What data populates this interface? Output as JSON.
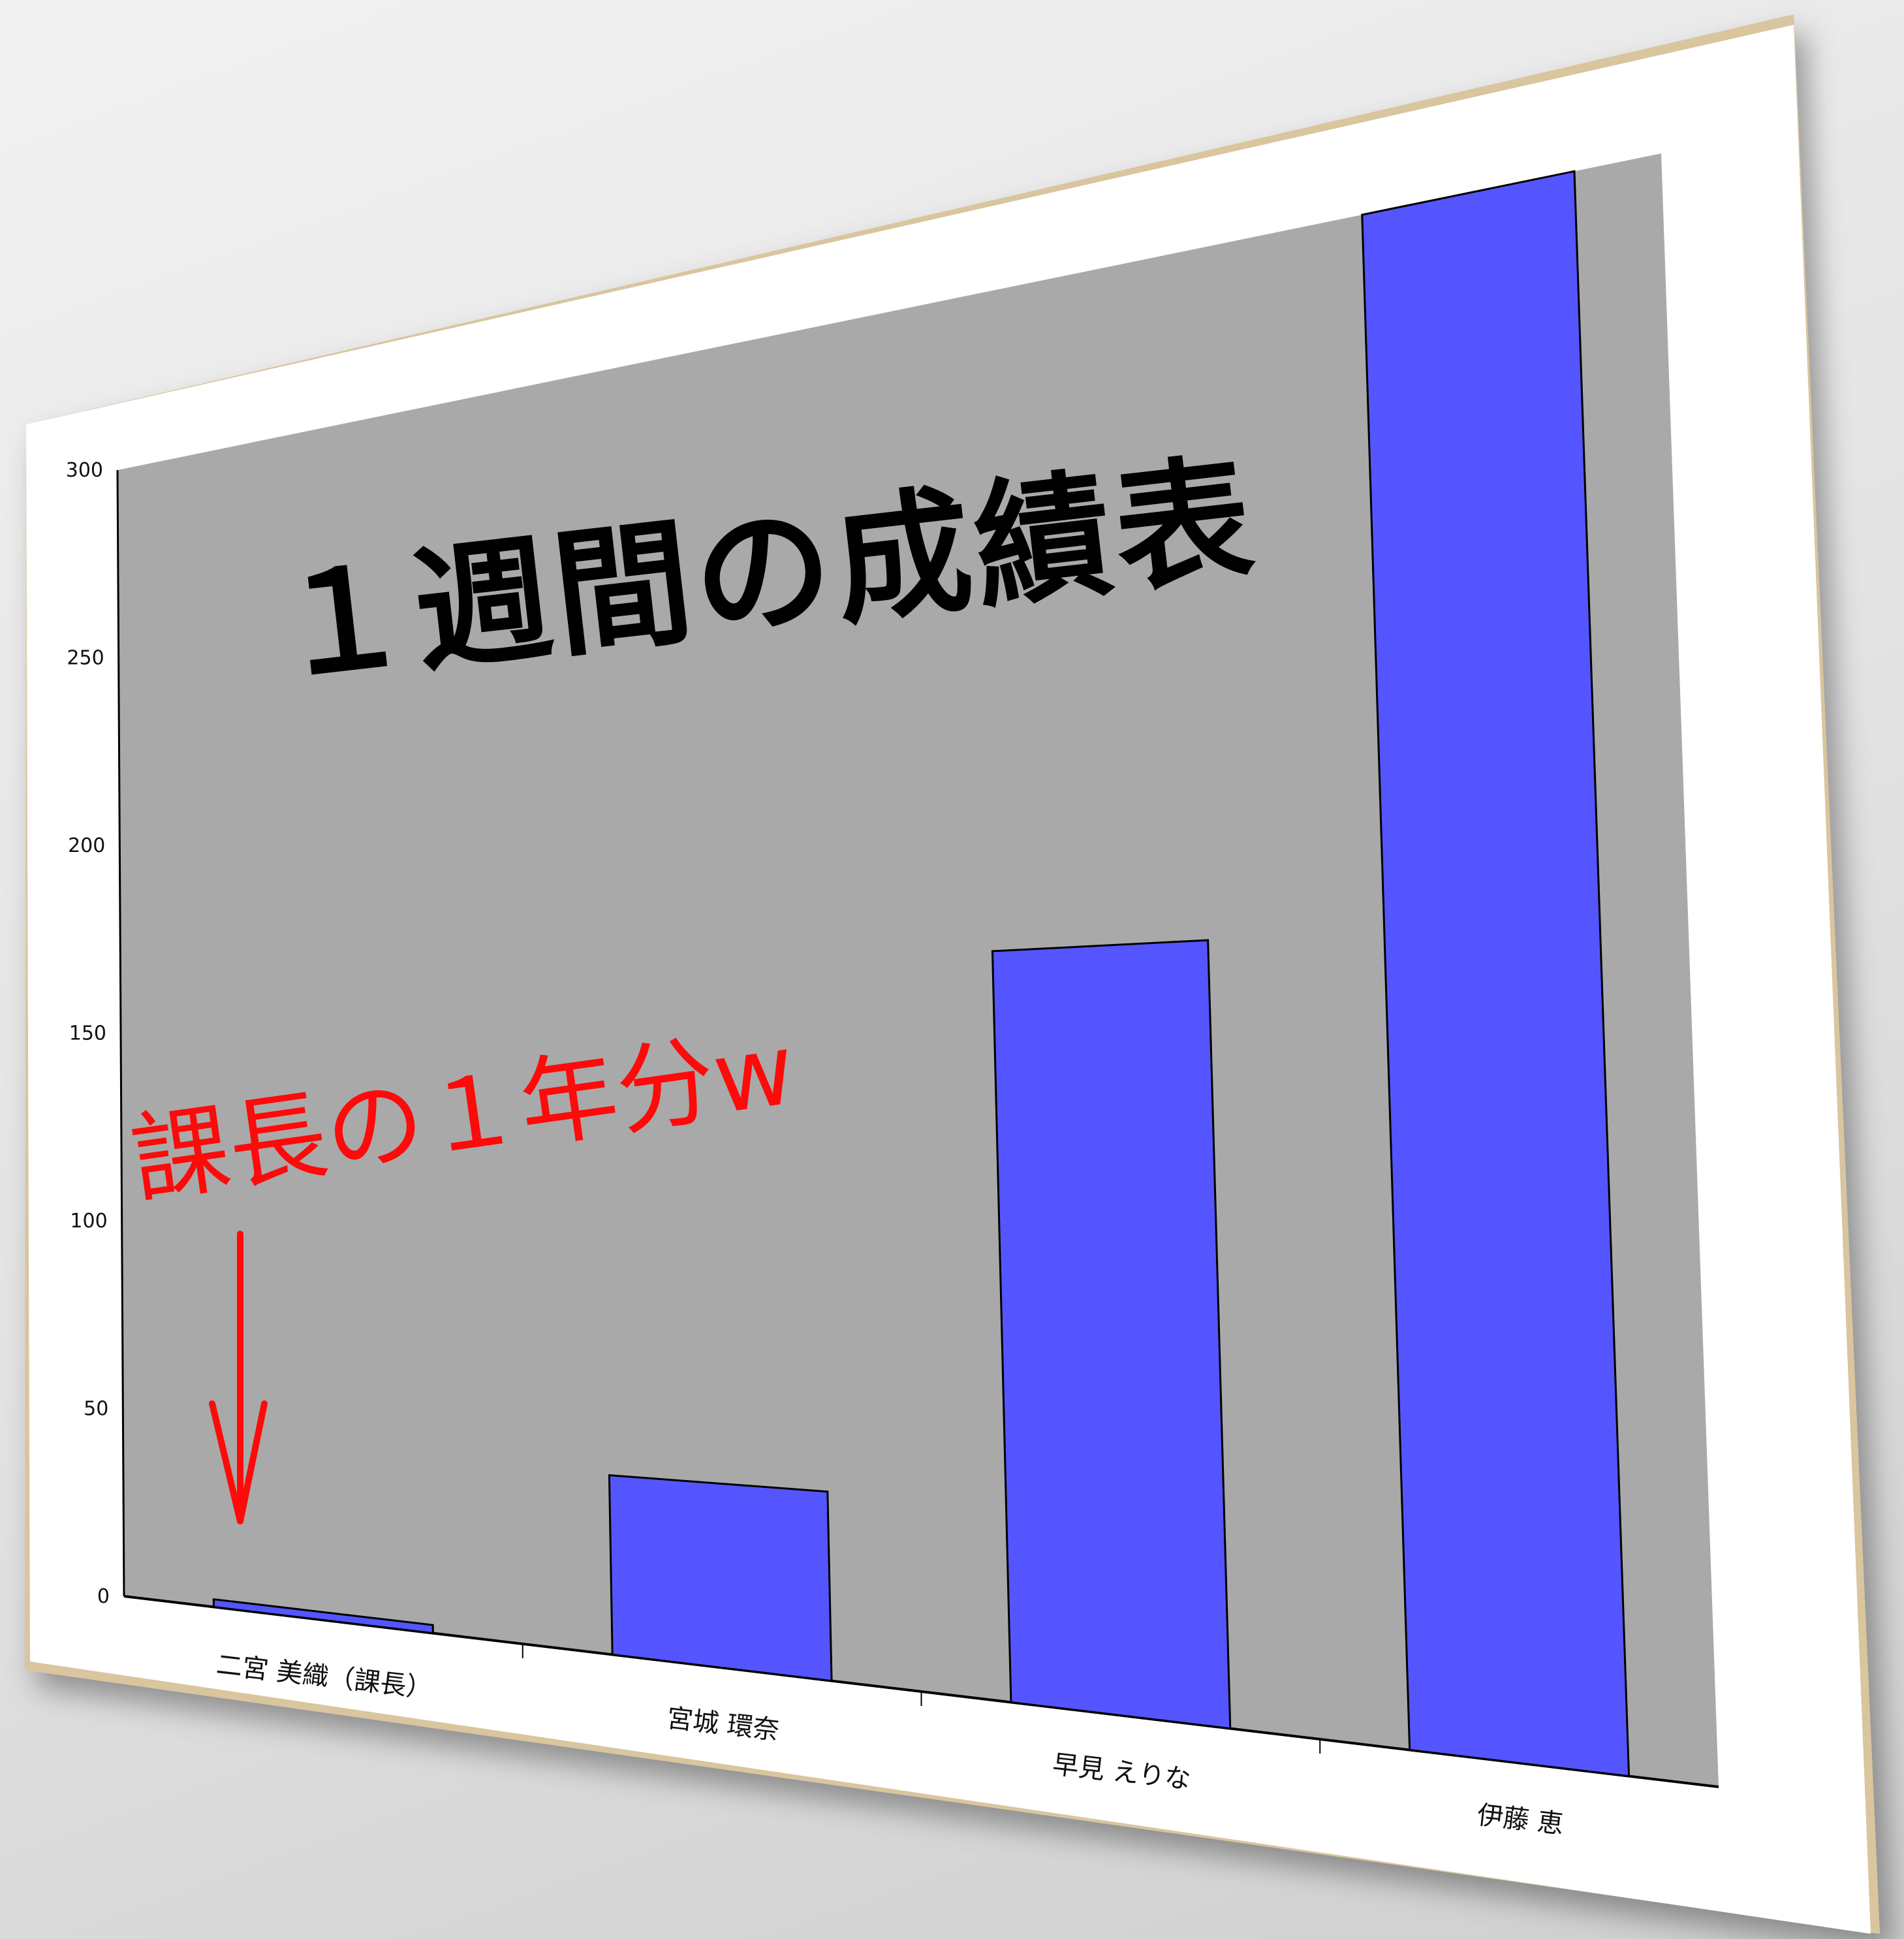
{
  "chart_data": {
    "type": "bar",
    "title": "１週間の成績表",
    "categories": [
      "二宮 美織（課長）",
      "宮城 環奈",
      "早見 えりな",
      "伊藤 恵"
    ],
    "values": [
      2,
      42,
      160,
      300
    ],
    "ylim": [
      0,
      300
    ],
    "yticks": [
      "0",
      "50",
      "100",
      "150",
      "200",
      "250",
      "300"
    ],
    "xlabel": "",
    "ylabel": "",
    "grid": false,
    "legend": "none",
    "colors": {
      "bar": "#5555ff",
      "plot_bg": "#a9a9a9",
      "frame": "#d8c6a0",
      "annotation": "#ff0a0a"
    },
    "annotation": {
      "text": "課長の１年分w",
      "target_category": "二宮 美織（課長）"
    }
  }
}
